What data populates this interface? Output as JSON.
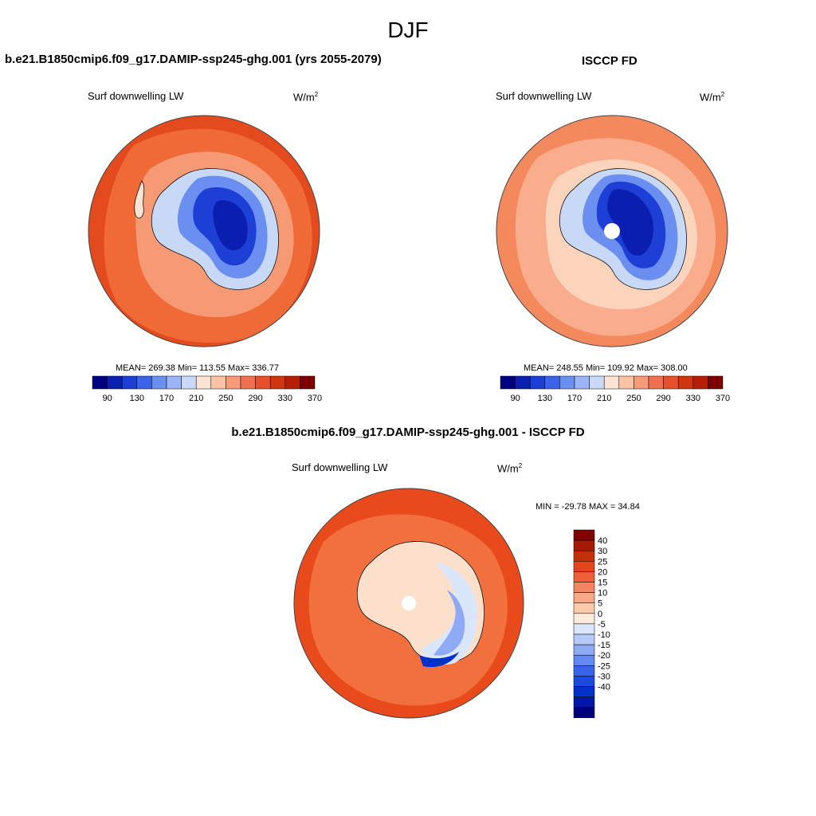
{
  "main_title": "DJF",
  "colors": {
    "abs_scale": [
      "#00007f",
      "#0a1fb0",
      "#1e3fd6",
      "#3c64e8",
      "#6a8ff0",
      "#9ab4f4",
      "#c8d8f7",
      "#fde4d2",
      "#fbc2a4",
      "#f79a79",
      "#f07152",
      "#e84f2d",
      "#d0360f",
      "#b41f06",
      "#7f0000"
    ],
    "diff_scale": [
      "#00007f",
      "#0016a8",
      "#0031c8",
      "#1a4ae0",
      "#3864ec",
      "#6288f2",
      "#8eaaf5",
      "#b6c9f7",
      "#dae6fa",
      "#feeada",
      "#fcc9aa",
      "#f9a887",
      "#f48462",
      "#ee5e3b",
      "#e44619",
      "#c4300a",
      "#a51a03",
      "#7f0000"
    ],
    "abs_map": {
      "model_outer": "#e34a1d",
      "model_ring": "#f06a38",
      "model_inner": "#f59a74",
      "obs_outer": "#f5895e",
      "obs_ring": "#f9ad8c",
      "obs_inner": "#fcd3bb"
    },
    "diff_map": {
      "outer": "#e84a1c",
      "ring": "#f2703d",
      "land": "#fce0cc"
    }
  },
  "panels": {
    "model": {
      "title": "b.e21.B1850cmip6.f09_g17.DAMIP-ssp245-ghg.001 (yrs 2055-2079)",
      "variable": "Surf downwelling LW",
      "units_base": "W/m",
      "units_exp": "2",
      "stats": "MEAN= 269.38  Min= 113.55  Max= 336.77"
    },
    "obs": {
      "title": "ISCCP FD",
      "variable": "Surf downwelling LW",
      "units_base": "W/m",
      "units_exp": "2",
      "stats": "MEAN= 248.55  Min= 109.92  Max= 308.00"
    },
    "diff": {
      "title": "b.e21.B1850cmip6.f09_g17.DAMIP-ssp245-ghg.001 - ISCCP FD",
      "variable": "Surf downwelling LW",
      "units_base": "W/m",
      "units_exp": "2",
      "stats": "MIN = -29.78 MAX =  34.84"
    }
  },
  "colorbar_abs": {
    "ticks": [
      "90",
      "130",
      "170",
      "210",
      "250",
      "290",
      "330",
      "370"
    ]
  },
  "colorbar_diff": {
    "ticks": [
      "40",
      "30",
      "25",
      "20",
      "15",
      "10",
      "5",
      "0",
      "-5",
      "-10",
      "-15",
      "-20",
      "-25",
      "-30",
      "-40"
    ]
  }
}
